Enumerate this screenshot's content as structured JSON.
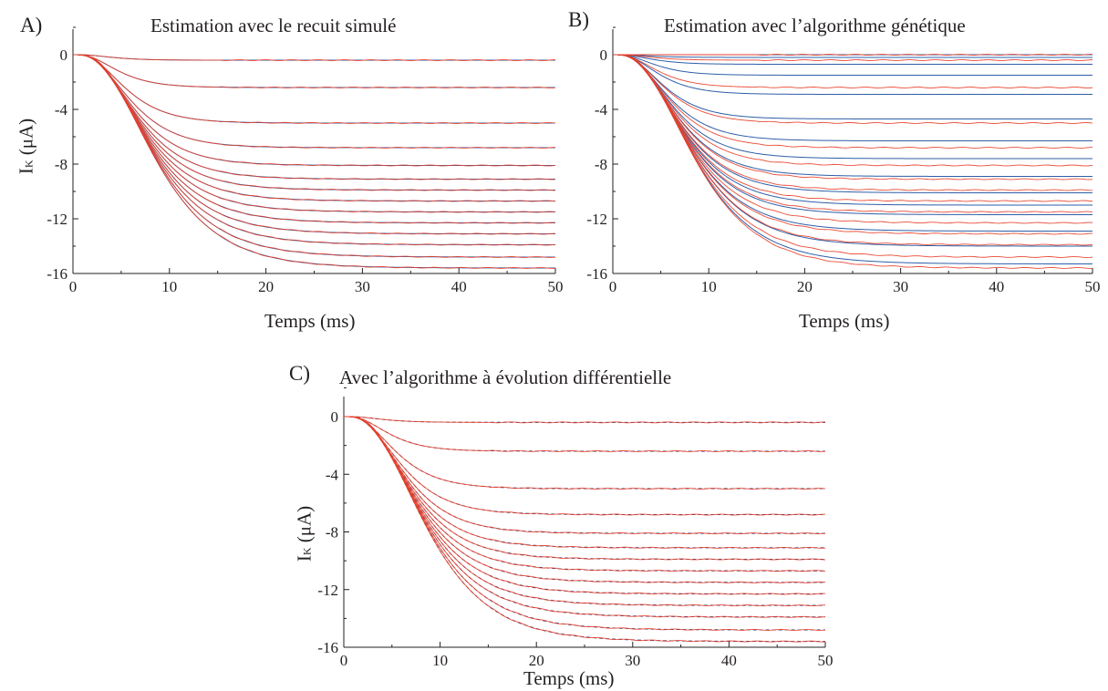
{
  "colors": {
    "axis": "#231f20",
    "fit": "#2e5fa8",
    "measured": "#e8402a"
  },
  "ylabel": {
    "base": "I",
    "sub": "K",
    "unit": "(μA)"
  },
  "chart_data": [
    {
      "id": "A",
      "letter": "A)",
      "title": "Estimation avec le recuit simulé",
      "type": "line",
      "xlabel": "Temps (ms)",
      "xlim": [
        0,
        50
      ],
      "ylim": [
        -16,
        2
      ],
      "xticks": [
        "0",
        "10",
        "20",
        "30",
        "40",
        "50"
      ],
      "yticks": [
        "0",
        "-4",
        "-8",
        "-12",
        "-16"
      ],
      "grid": false,
      "series_style": {
        "measured": "solid",
        "fit": "solid"
      },
      "measured_asymptotes": [
        -0.4,
        -2.4,
        -5.0,
        -6.8,
        -8.1,
        -9.1,
        -9.9,
        -10.7,
        -11.5,
        -12.3,
        -13.1,
        -13.9,
        -14.8,
        -15.6
      ],
      "fit_asymptotes": [
        -0.4,
        -2.4,
        -5.0,
        -6.8,
        -8.1,
        -9.1,
        -9.9,
        -10.7,
        -11.5,
        -12.3,
        -13.1,
        -13.9,
        -14.8,
        -15.6
      ]
    },
    {
      "id": "B",
      "letter": "B)",
      "title": "Estimation avec l’algorithme génétique",
      "type": "line",
      "xlabel": "Temps (ms)",
      "xlim": [
        0,
        50
      ],
      "ylim": [
        -16,
        2
      ],
      "xticks": [
        "0",
        "10",
        "20",
        "30",
        "40",
        "50"
      ],
      "yticks": [
        "0",
        "-4",
        "-8",
        "-12",
        "-16"
      ],
      "grid": false,
      "series_style": {
        "measured": "solid",
        "fit": "solid"
      },
      "measured_asymptotes": [
        0.0,
        -0.4,
        -2.4,
        -5.0,
        -6.8,
        -8.1,
        -9.1,
        -9.9,
        -10.7,
        -11.5,
        -12.3,
        -13.1,
        -13.9,
        -14.8,
        -15.6
      ],
      "fit_asymptotes": [
        0.0,
        -0.2,
        -0.7,
        -1.5,
        -2.9,
        -4.7,
        -6.3,
        -7.6,
        -8.9,
        -10.1,
        -11.0,
        -11.7,
        -12.9,
        -14.0,
        -15.3
      ]
    },
    {
      "id": "C",
      "letter": "C)",
      "title": "Avec l’algorithme à évolution différentielle",
      "type": "line",
      "xlabel": "Temps (ms)",
      "xlim": [
        0,
        50
      ],
      "ylim": [
        -16,
        2
      ],
      "xticks": [
        "0",
        "10",
        "20",
        "30",
        "40",
        "50"
      ],
      "yticks": [
        "0",
        "-4",
        "-8",
        "-12",
        "-16"
      ],
      "grid": false,
      "series_style": {
        "measured": "solid",
        "fit": "dashed"
      },
      "measured_asymptotes": [
        -0.4,
        -2.4,
        -5.0,
        -6.8,
        -8.1,
        -9.1,
        -9.9,
        -10.7,
        -11.5,
        -12.3,
        -13.1,
        -13.9,
        -14.8,
        -15.6
      ],
      "fit_asymptotes": [
        -0.4,
        -2.4,
        -5.0,
        -6.8,
        -8.1,
        -9.1,
        -9.9,
        -10.7,
        -11.5,
        -12.3,
        -13.1,
        -13.9,
        -14.8,
        -15.6
      ]
    }
  ]
}
